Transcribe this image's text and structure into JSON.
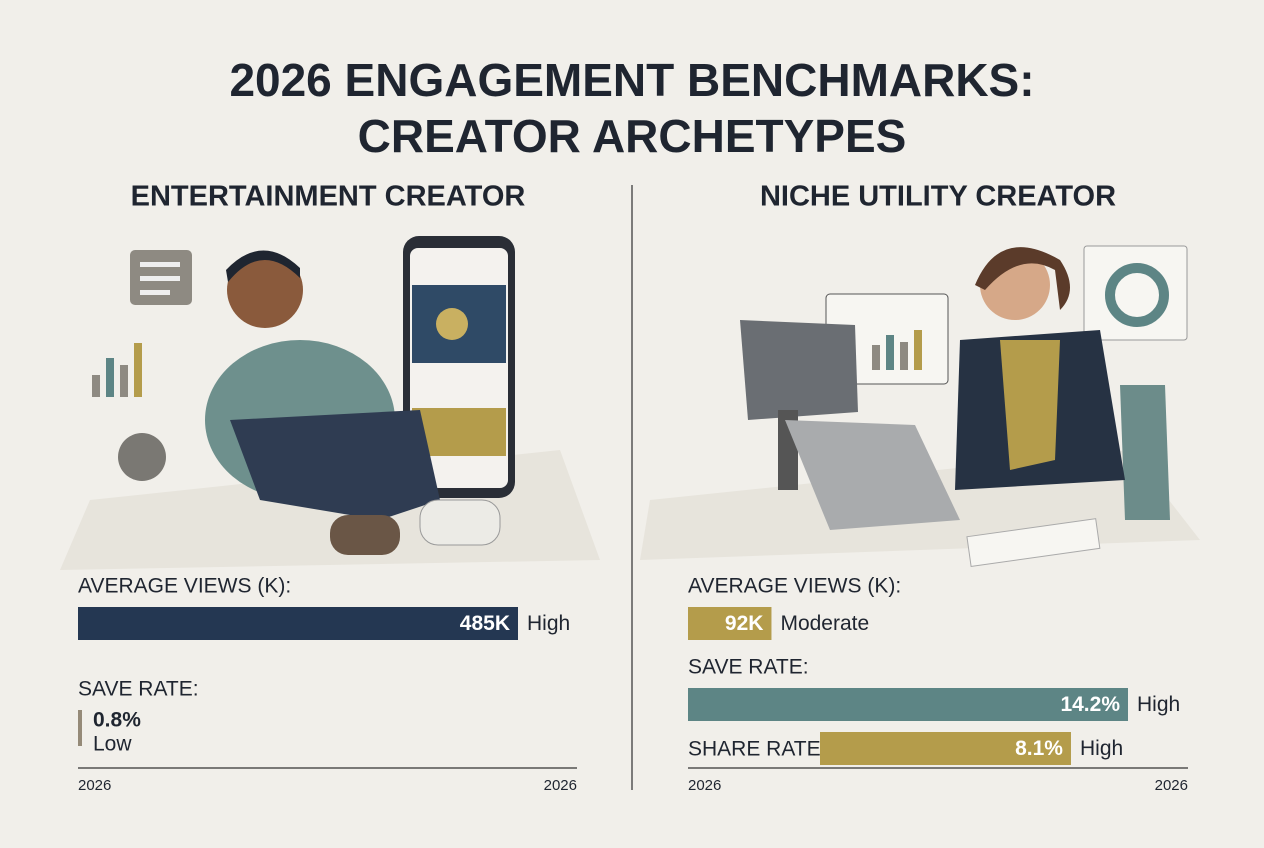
{
  "title_lines": [
    "2026 ENGAGEMENT BENCHMARKS:",
    "CREATOR ARCHETYPES"
  ],
  "panels": [
    {
      "heading": "ENTERTAINMENT CREATOR",
      "metrics": [
        {
          "label": "AVERAGE VIEWS (K):",
          "value": 485,
          "value_label": "485K",
          "rating": "High",
          "color": "#243752"
        },
        {
          "label": "SAVE RATE:",
          "value": 0.8,
          "value_label": "0.8%",
          "rating": "Low",
          "color": "#958a78"
        }
      ],
      "axis_labels": [
        "2026",
        "2026"
      ]
    },
    {
      "heading": "NICHE UTILITY CREATOR",
      "metrics": [
        {
          "label": "AVERAGE VIEWS (K):",
          "value": 92,
          "value_label": "92K",
          "rating": "Moderate",
          "color": "#b49c4b"
        },
        {
          "label": "SAVE RATE:",
          "value": 14.2,
          "value_label": "14.2%",
          "rating": "High",
          "color": "#5d8585"
        },
        {
          "label": "SHARE RATE:",
          "value": 8.1,
          "value_label": "8.1%",
          "rating": "High",
          "color": "#b49c4b"
        }
      ],
      "axis_labels": [
        "2026",
        "2026"
      ]
    }
  ]
}
